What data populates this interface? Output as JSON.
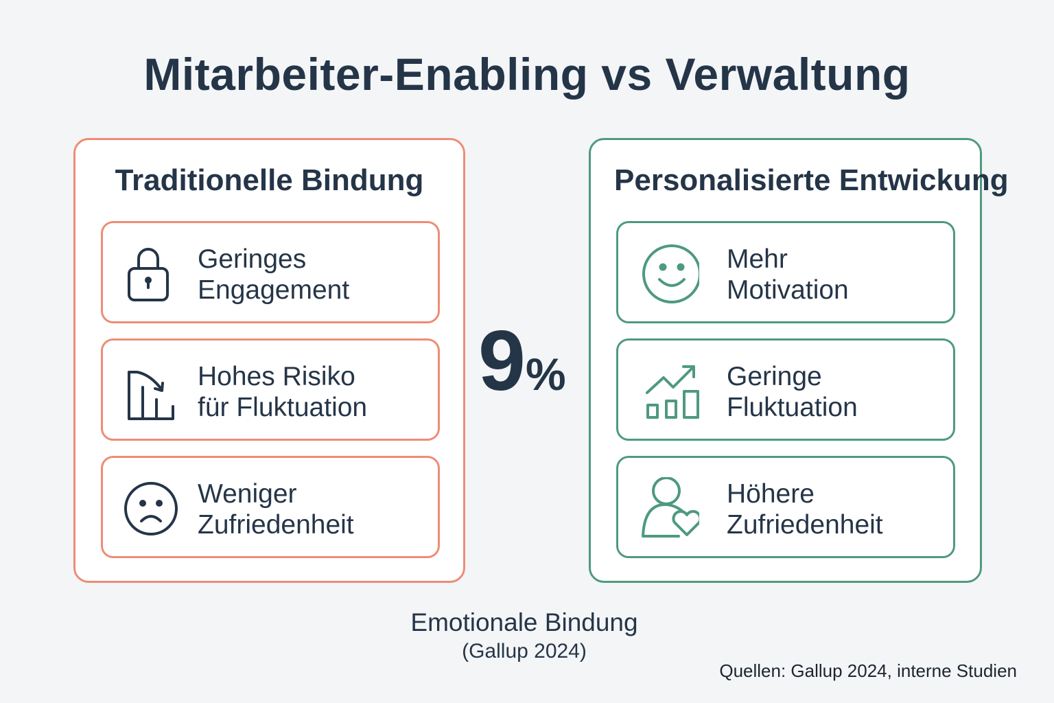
{
  "title": "Mitarbeiter-Enabling vs Verwaltung",
  "colors": {
    "traditional": "#ee8c76",
    "personalized": "#4e9a7e",
    "text": "#253548",
    "background": "#f3f5f7"
  },
  "left_panel": {
    "title": "Traditionelle Bindung",
    "items": [
      {
        "icon": "lock-icon",
        "line1": "Geringes",
        "line2": "Engagement"
      },
      {
        "icon": "declining-chart-icon",
        "line1": "Hohes Risiko",
        "line2": "für Fluktuation"
      },
      {
        "icon": "sad-face-icon",
        "line1": "Weniger",
        "line2": "Zufriedenheit"
      }
    ]
  },
  "right_panel": {
    "title": "Personalisierte Entwickung",
    "items": [
      {
        "icon": "smiley-face-icon",
        "line1": "Mehr",
        "line2": "Motivation"
      },
      {
        "icon": "growth-chart-icon",
        "line1": "Geringe",
        "line2": "Fluktuation"
      },
      {
        "icon": "person-heart-icon",
        "line1": "Höhere",
        "line2": "Zufriedenheit"
      }
    ]
  },
  "stat": {
    "number": "9",
    "unit": "%"
  },
  "footer": {
    "label": "Emotionale Bindung",
    "sublabel": "(Gallup 2024)",
    "sources": "Quellen: Gallup 2024, interne Studien"
  }
}
